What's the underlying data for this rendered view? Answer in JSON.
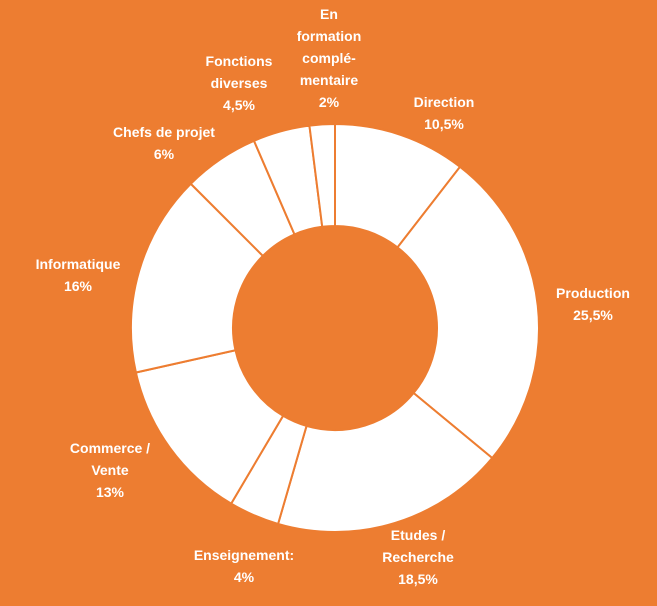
{
  "chart_data": {
    "type": "pie",
    "donut": true,
    "title": "",
    "colors": {
      "background": "#ED7D31",
      "slice_fill": "#FFFFFF",
      "slice_border": "#ED7D31",
      "label_text": "#FFFFFF"
    },
    "slices": [
      {
        "label_lines": [
          "Direction"
        ],
        "value_text": "10,5%",
        "value": 10.5
      },
      {
        "label_lines": [
          "Production"
        ],
        "value_text": "25,5%",
        "value": 25.5
      },
      {
        "label_lines": [
          "Etudes /",
          "Recherche"
        ],
        "value_text": "18,5%",
        "value": 18.5
      },
      {
        "label_lines": [
          "Enseignement:"
        ],
        "value_text": "4%",
        "value": 4
      },
      {
        "label_lines": [
          "Commerce /",
          "Vente"
        ],
        "value_text": "13%",
        "value": 13
      },
      {
        "label_lines": [
          "Informatique"
        ],
        "value_text": "16%",
        "value": 16
      },
      {
        "label_lines": [
          "Chefs de projet"
        ],
        "value_text": "6%",
        "value": 6
      },
      {
        "label_lines": [
          "Fonctions",
          "diverses"
        ],
        "value_text": "4,5%",
        "value": 4.5
      },
      {
        "label_lines": [
          "En",
          "formation",
          "complé-",
          "mentaire"
        ],
        "value_text": "2%",
        "value": 2
      }
    ]
  }
}
